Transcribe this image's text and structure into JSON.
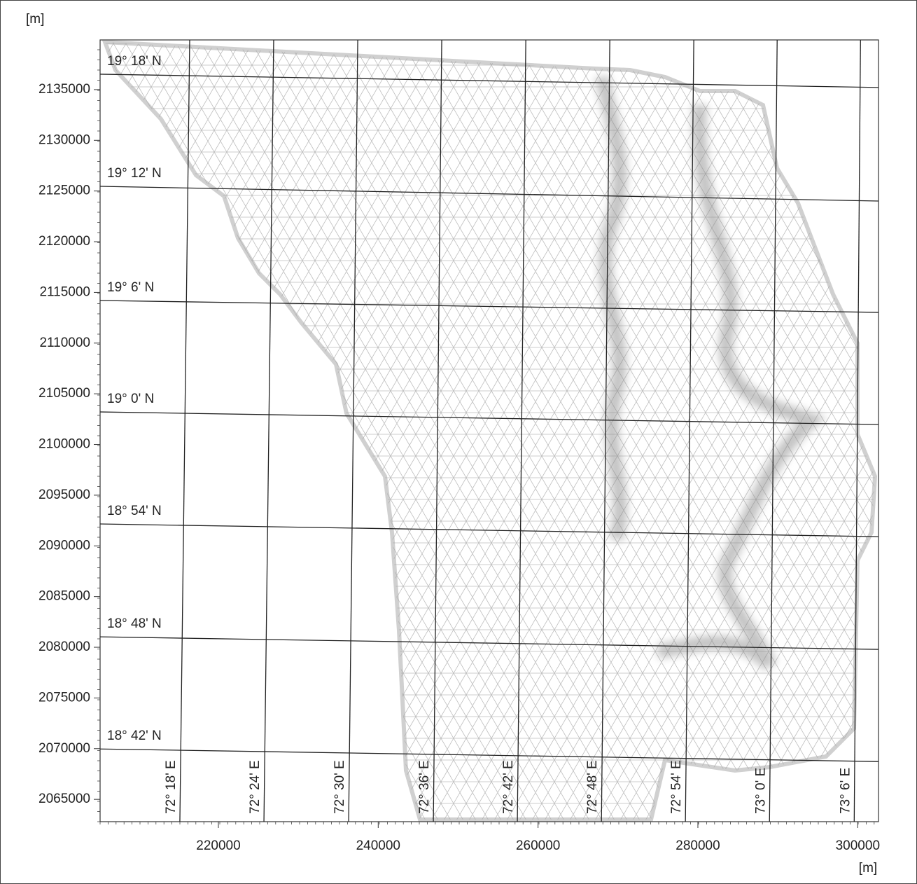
{
  "map": {
    "x_axis": {
      "unit": "[m]",
      "lim": [
        205200,
        302600
      ],
      "ticks": [
        220000,
        240000,
        260000,
        280000,
        300000
      ]
    },
    "y_axis": {
      "unit": "[m]",
      "lim": [
        2062800,
        2139900
      ],
      "ticks": [
        2065000,
        2070000,
        2075000,
        2080000,
        2085000,
        2090000,
        2095000,
        2100000,
        2105000,
        2110000,
        2115000,
        2120000,
        2125000,
        2130000,
        2135000
      ]
    },
    "parallels": [
      {
        "label": "19° 18' N",
        "y_left": 2136520,
        "y_right": 2135210
      },
      {
        "label": "19° 12' N",
        "y_left": 2125460,
        "y_right": 2124010
      },
      {
        "label": "19° 6' N",
        "y_left": 2114200,
        "y_right": 2113030
      },
      {
        "label": "19° 0' N",
        "y_left": 2103210,
        "y_right": 2101970
      },
      {
        "label": "18° 54' N",
        "y_left": 2092160,
        "y_right": 2090910
      },
      {
        "label": "18° 48' N",
        "y_left": 2081030,
        "y_right": 2079790
      },
      {
        "label": "18° 42' N",
        "y_left": 2069970,
        "y_right": 2068730
      }
    ],
    "meridians": [
      {
        "label": "72° 18' E",
        "x_top": 216410,
        "x_bottom": 215180
      },
      {
        "label": "72° 24' E",
        "x_top": 226920,
        "x_bottom": 225700
      },
      {
        "label": "72° 30' E",
        "x_top": 237440,
        "x_bottom": 236300
      },
      {
        "label": "72° 36' E",
        "x_top": 247950,
        "x_bottom": 246900
      },
      {
        "label": "72° 42' E",
        "x_top": 258470,
        "x_bottom": 257410
      },
      {
        "label": "72° 48' E",
        "x_top": 268980,
        "x_bottom": 267930
      },
      {
        "label": "72° 54' E",
        "x_top": 279490,
        "x_bottom": 278440
      },
      {
        "label": "73° 0' E",
        "x_top": 289920,
        "x_bottom": 288960
      },
      {
        "label": "73° 6' E",
        "x_top": 300350,
        "x_bottom": 299560
      }
    ]
  }
}
